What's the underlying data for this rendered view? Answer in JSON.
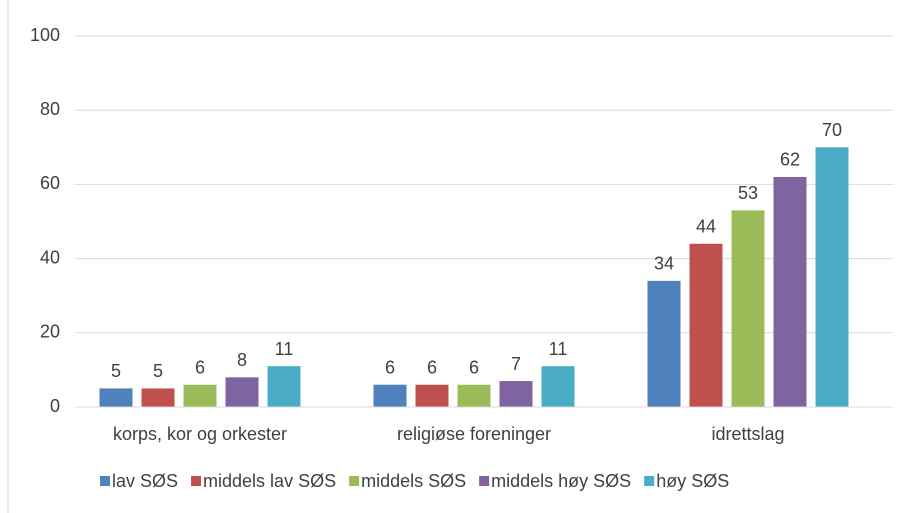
{
  "chart_data": {
    "type": "bar",
    "categories": [
      "korps, kor og orkester",
      "religiøse foreninger",
      "idrettslag"
    ],
    "series": [
      {
        "name": "lav SØS",
        "color": "#4f81bd",
        "values": [
          5,
          6,
          34
        ]
      },
      {
        "name": "middels lav SØS",
        "color": "#c0504d",
        "values": [
          5,
          6,
          44
        ]
      },
      {
        "name": "middels SØS",
        "color": "#9bbb59",
        "values": [
          6,
          6,
          53
        ]
      },
      {
        "name": "middels høy SØS",
        "color": "#8064a2",
        "values": [
          8,
          7,
          62
        ]
      },
      {
        "name": "høy SØS",
        "color": "#4bacc6",
        "values": [
          11,
          11,
          70
        ]
      }
    ],
    "ylim": [
      0,
      100
    ],
    "yticks": [
      0,
      20,
      40,
      60,
      80,
      100
    ],
    "grid": true,
    "legend": "bottom"
  }
}
